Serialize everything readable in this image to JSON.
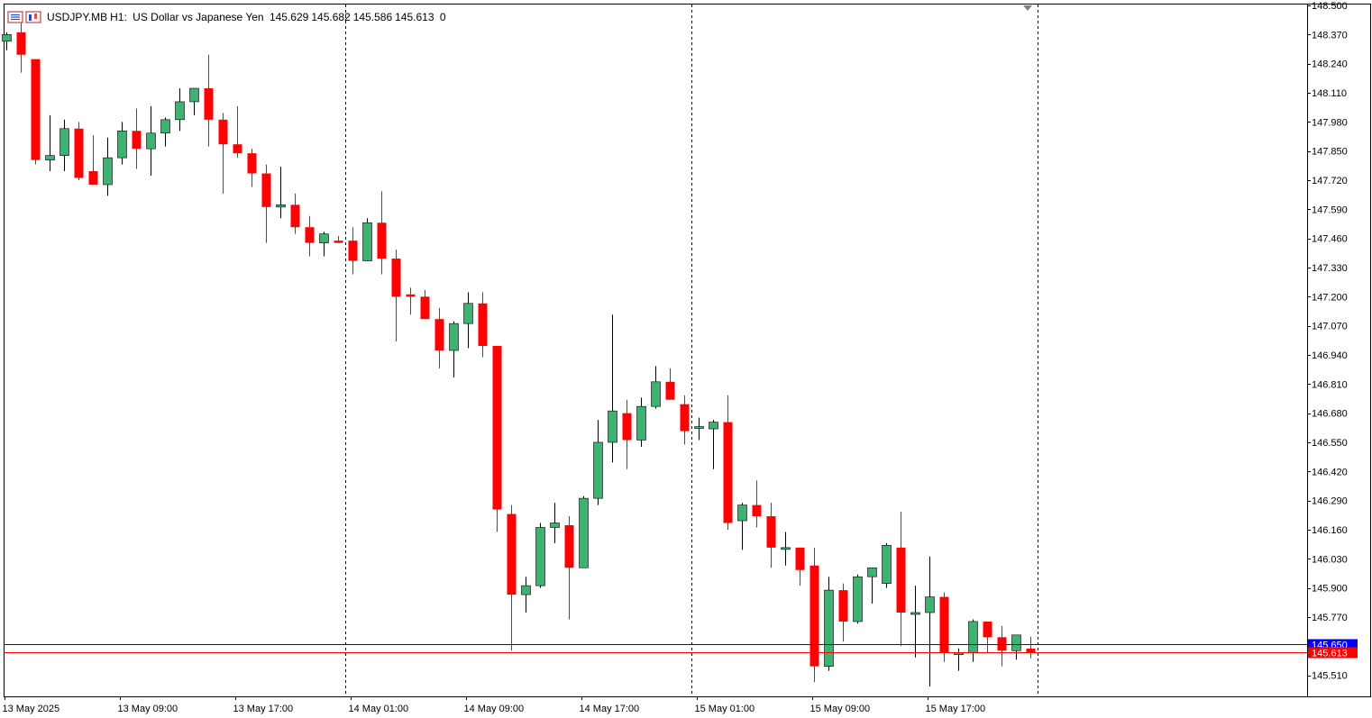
{
  "header": {
    "symbol": "USDJPY.MB",
    "timeframe": "H1:",
    "description": "US Dollar vs Japanese Yen",
    "open": "145.629",
    "high": "145.682",
    "low": "145.586",
    "close": "145.613",
    "volume": "0"
  },
  "colors": {
    "bull": "#3cb371",
    "bear": "#ff0000",
    "bid_line": "#0000ff",
    "ask_line": "#ff0000",
    "grid_separator": "#000000"
  },
  "chart_data": {
    "type": "candlestick",
    "symbol": "USDJPY.MB",
    "timeframe": "H1",
    "y_ticks": [
      "148.500",
      "148.370",
      "148.240",
      "148.110",
      "147.980",
      "147.850",
      "147.720",
      "147.590",
      "147.460",
      "147.330",
      "147.200",
      "147.070",
      "146.940",
      "146.810",
      "146.680",
      "146.550",
      "146.420",
      "146.290",
      "146.160",
      "146.030",
      "145.900",
      "145.770",
      "145.650",
      "145.613",
      "145.510"
    ],
    "ylim": [
      145.42,
      148.5
    ],
    "x_labels": [
      {
        "label": "13 May 2025",
        "bar": 0
      },
      {
        "label": "13 May 09:00",
        "bar": 8
      },
      {
        "label": "13 May 17:00",
        "bar": 16
      },
      {
        "label": "14 May 01:00",
        "bar": 24
      },
      {
        "label": "14 May 09:00",
        "bar": 32
      },
      {
        "label": "14 May 17:00",
        "bar": 40
      },
      {
        "label": "15 May 01:00",
        "bar": 48
      },
      {
        "label": "15 May 09:00",
        "bar": 56
      },
      {
        "label": "15 May 17:00",
        "bar": 64
      }
    ],
    "day_separators": [
      23,
      47,
      71
    ],
    "price_lines": [
      {
        "name": "bid",
        "value": 145.65,
        "label": "145.650"
      },
      {
        "name": "last",
        "value": 145.613,
        "label": 145.613
      }
    ],
    "candles": [
      {
        "o": 148.34,
        "h": 148.38,
        "l": 148.3,
        "c": 148.37
      },
      {
        "o": 148.38,
        "h": 148.44,
        "l": 148.2,
        "c": 148.28
      },
      {
        "o": 148.26,
        "h": 148.26,
        "l": 147.79,
        "c": 147.81
      },
      {
        "o": 147.81,
        "h": 148.01,
        "l": 147.76,
        "c": 147.83
      },
      {
        "o": 147.83,
        "h": 147.99,
        "l": 147.76,
        "c": 147.95
      },
      {
        "o": 147.95,
        "h": 147.98,
        "l": 147.72,
        "c": 147.73
      },
      {
        "o": 147.76,
        "h": 147.92,
        "l": 147.7,
        "c": 147.7
      },
      {
        "o": 147.7,
        "h": 147.91,
        "l": 147.65,
        "c": 147.82
      },
      {
        "o": 147.82,
        "h": 147.98,
        "l": 147.79,
        "c": 147.94
      },
      {
        "o": 147.94,
        "h": 148.04,
        "l": 147.77,
        "c": 147.86
      },
      {
        "o": 147.86,
        "h": 148.05,
        "l": 147.74,
        "c": 147.93
      },
      {
        "o": 147.93,
        "h": 148.0,
        "l": 147.87,
        "c": 147.99
      },
      {
        "o": 147.99,
        "h": 148.13,
        "l": 147.94,
        "c": 148.07
      },
      {
        "o": 148.07,
        "h": 148.13,
        "l": 148.01,
        "c": 148.13
      },
      {
        "o": 148.13,
        "h": 148.28,
        "l": 147.87,
        "c": 147.99
      },
      {
        "o": 147.99,
        "h": 148.02,
        "l": 147.66,
        "c": 147.88
      },
      {
        "o": 147.88,
        "h": 148.05,
        "l": 147.82,
        "c": 147.84
      },
      {
        "o": 147.84,
        "h": 147.86,
        "l": 147.69,
        "c": 147.75
      },
      {
        "o": 147.75,
        "h": 147.79,
        "l": 147.44,
        "c": 147.6
      },
      {
        "o": 147.6,
        "h": 147.78,
        "l": 147.55,
        "c": 147.61
      },
      {
        "o": 147.61,
        "h": 147.66,
        "l": 147.48,
        "c": 147.51
      },
      {
        "o": 147.51,
        "h": 147.56,
        "l": 147.38,
        "c": 147.44
      },
      {
        "o": 147.44,
        "h": 147.49,
        "l": 147.38,
        "c": 147.48
      },
      {
        "o": 147.45,
        "h": 147.47,
        "l": 147.44,
        "c": 147.44
      },
      {
        "o": 147.45,
        "h": 147.51,
        "l": 147.3,
        "c": 147.36
      },
      {
        "o": 147.36,
        "h": 147.55,
        "l": 147.36,
        "c": 147.53
      },
      {
        "o": 147.53,
        "h": 147.67,
        "l": 147.3,
        "c": 147.37
      },
      {
        "o": 147.37,
        "h": 147.41,
        "l": 147.0,
        "c": 147.2
      },
      {
        "o": 147.21,
        "h": 147.24,
        "l": 147.12,
        "c": 147.2
      },
      {
        "o": 147.2,
        "h": 147.23,
        "l": 147.1,
        "c": 147.1
      },
      {
        "o": 147.1,
        "h": 147.15,
        "l": 146.88,
        "c": 146.96
      },
      {
        "o": 146.96,
        "h": 147.09,
        "l": 146.84,
        "c": 147.08
      },
      {
        "o": 147.08,
        "h": 147.22,
        "l": 146.97,
        "c": 147.17
      },
      {
        "o": 147.17,
        "h": 147.22,
        "l": 146.93,
        "c": 146.98
      },
      {
        "o": 146.98,
        "h": 146.98,
        "l": 146.15,
        "c": 146.25
      },
      {
        "o": 146.23,
        "h": 146.27,
        "l": 145.62,
        "c": 145.87
      },
      {
        "o": 145.87,
        "h": 145.95,
        "l": 145.79,
        "c": 145.91
      },
      {
        "o": 145.91,
        "h": 146.19,
        "l": 145.9,
        "c": 146.17
      },
      {
        "o": 146.17,
        "h": 146.28,
        "l": 146.1,
        "c": 146.19
      },
      {
        "o": 146.18,
        "h": 146.22,
        "l": 145.76,
        "c": 145.99
      },
      {
        "o": 145.99,
        "h": 146.31,
        "l": 145.99,
        "c": 146.3
      },
      {
        "o": 146.3,
        "h": 146.65,
        "l": 146.27,
        "c": 146.55
      },
      {
        "o": 146.55,
        "h": 147.12,
        "l": 146.46,
        "c": 146.69
      },
      {
        "o": 146.68,
        "h": 146.74,
        "l": 146.43,
        "c": 146.56
      },
      {
        "o": 146.56,
        "h": 146.75,
        "l": 146.53,
        "c": 146.71
      },
      {
        "o": 146.71,
        "h": 146.89,
        "l": 146.7,
        "c": 146.82
      },
      {
        "o": 146.82,
        "h": 146.88,
        "l": 146.74,
        "c": 146.74
      },
      {
        "o": 146.72,
        "h": 146.76,
        "l": 146.54,
        "c": 146.6
      },
      {
        "o": 146.62,
        "h": 146.66,
        "l": 146.56,
        "c": 146.62
      },
      {
        "o": 146.61,
        "h": 146.65,
        "l": 146.43,
        "c": 146.64
      },
      {
        "o": 146.64,
        "h": 146.76,
        "l": 146.16,
        "c": 146.19
      },
      {
        "o": 146.2,
        "h": 146.28,
        "l": 146.07,
        "c": 146.27
      },
      {
        "o": 146.27,
        "h": 146.38,
        "l": 146.17,
        "c": 146.22
      },
      {
        "o": 146.22,
        "h": 146.28,
        "l": 145.99,
        "c": 146.08
      },
      {
        "o": 146.08,
        "h": 146.15,
        "l": 146.0,
        "c": 146.08
      },
      {
        "o": 146.08,
        "h": 146.08,
        "l": 145.91,
        "c": 145.98
      },
      {
        "o": 146.0,
        "h": 146.08,
        "l": 145.48,
        "c": 145.55
      },
      {
        "o": 145.55,
        "h": 145.95,
        "l": 145.53,
        "c": 145.89
      },
      {
        "o": 145.89,
        "h": 145.92,
        "l": 145.66,
        "c": 145.75
      },
      {
        "o": 145.75,
        "h": 145.96,
        "l": 145.74,
        "c": 145.95
      },
      {
        "o": 145.95,
        "h": 145.99,
        "l": 145.83,
        "c": 145.99
      },
      {
        "o": 145.92,
        "h": 146.1,
        "l": 145.9,
        "c": 146.09
      },
      {
        "o": 146.08,
        "h": 146.24,
        "l": 145.64,
        "c": 145.79
      },
      {
        "o": 145.79,
        "h": 145.91,
        "l": 145.59,
        "c": 145.79
      },
      {
        "o": 145.79,
        "h": 146.04,
        "l": 145.46,
        "c": 145.86
      },
      {
        "o": 145.86,
        "h": 145.88,
        "l": 145.57,
        "c": 145.61
      },
      {
        "o": 145.61,
        "h": 145.63,
        "l": 145.53,
        "c": 145.61
      },
      {
        "o": 145.61,
        "h": 145.76,
        "l": 145.57,
        "c": 145.75
      },
      {
        "o": 145.75,
        "h": 145.75,
        "l": 145.61,
        "c": 145.68
      },
      {
        "o": 145.68,
        "h": 145.73,
        "l": 145.55,
        "c": 145.62
      },
      {
        "o": 145.62,
        "h": 145.69,
        "l": 145.58,
        "c": 145.69
      },
      {
        "o": 145.629,
        "h": 145.682,
        "l": 145.586,
        "c": 145.613
      }
    ]
  }
}
